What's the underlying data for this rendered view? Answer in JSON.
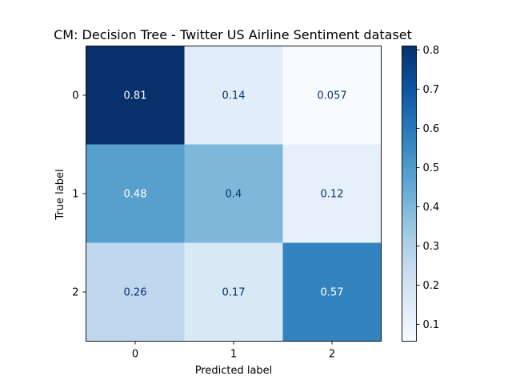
{
  "chart_data": {
    "type": "heatmap",
    "title": "CM: Decision Tree - Twitter US Airline Sentiment dataset",
    "xlabel": "Predicted label",
    "ylabel": "True label",
    "x_categories": [
      "0",
      "1",
      "2"
    ],
    "y_categories": [
      "0",
      "1",
      "2"
    ],
    "matrix": [
      [
        0.81,
        0.14,
        0.057
      ],
      [
        0.48,
        0.4,
        0.12
      ],
      [
        0.26,
        0.17,
        0.57
      ]
    ],
    "cell_labels": [
      [
        "0.81",
        "0.14",
        "0.057"
      ],
      [
        "0.48",
        "0.4",
        "0.12"
      ],
      [
        "0.26",
        "0.17",
        "0.57"
      ]
    ],
    "colormap": "Blues",
    "colorbar": {
      "range": [
        0.057,
        0.81
      ],
      "ticks": [
        0.1,
        0.2,
        0.3,
        0.4,
        0.5,
        0.6,
        0.7,
        0.8
      ],
      "tick_labels": [
        "0.1",
        "0.2",
        "0.3",
        "0.4",
        "0.5",
        "0.6",
        "0.7",
        "0.8"
      ]
    },
    "grid": false
  }
}
